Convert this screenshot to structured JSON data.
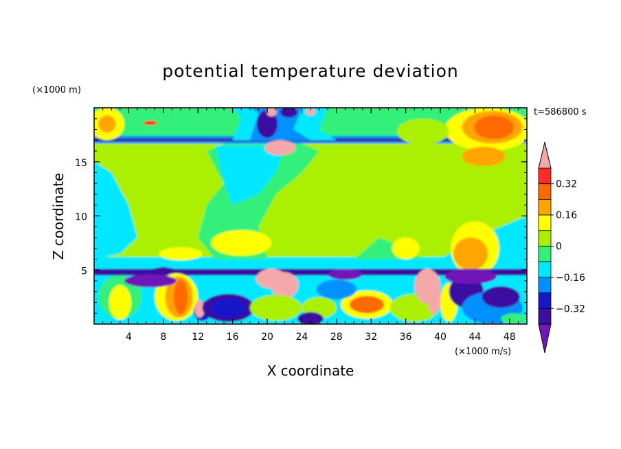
{
  "chart_data": {
    "type": "heatmap",
    "title": "potential temperature deviation",
    "xlabel": "X coordinate",
    "ylabel": "Z coordinate",
    "x_unit": "(×1000 m/s)",
    "y_unit": "(×1000 m)",
    "time_label": "t=586800 s",
    "xlim": [
      0,
      50
    ],
    "ylim": [
      0,
      20
    ],
    "x_ticks": [
      4,
      8,
      12,
      16,
      20,
      24,
      28,
      32,
      36,
      40,
      44,
      48
    ],
    "y_ticks": [
      5,
      10,
      15
    ],
    "colorbar": {
      "levels": [
        -0.48,
        -0.4,
        -0.32,
        -0.24,
        -0.16,
        -0.08,
        0,
        0.08,
        0.16,
        0.24,
        0.32,
        0.4
      ],
      "labeled_levels": [
        0.32,
        0.16,
        0,
        -0.16,
        -0.32
      ],
      "label_text": [
        "0.32",
        "0.16",
        "0",
        "−0.16",
        "−0.32"
      ],
      "colors_high_to_low": [
        "#f4a9a8",
        "#ff2a2a",
        "#ff6a00",
        "#ffa500",
        "#ffff00",
        "#aaf000",
        "#33f07a",
        "#00e8ff",
        "#0090ff",
        "#1818c8",
        "#3a10a0",
        "#7018b8"
      ]
    },
    "colors": {
      "axis": "#000000",
      "background": "#ffffff"
    }
  }
}
